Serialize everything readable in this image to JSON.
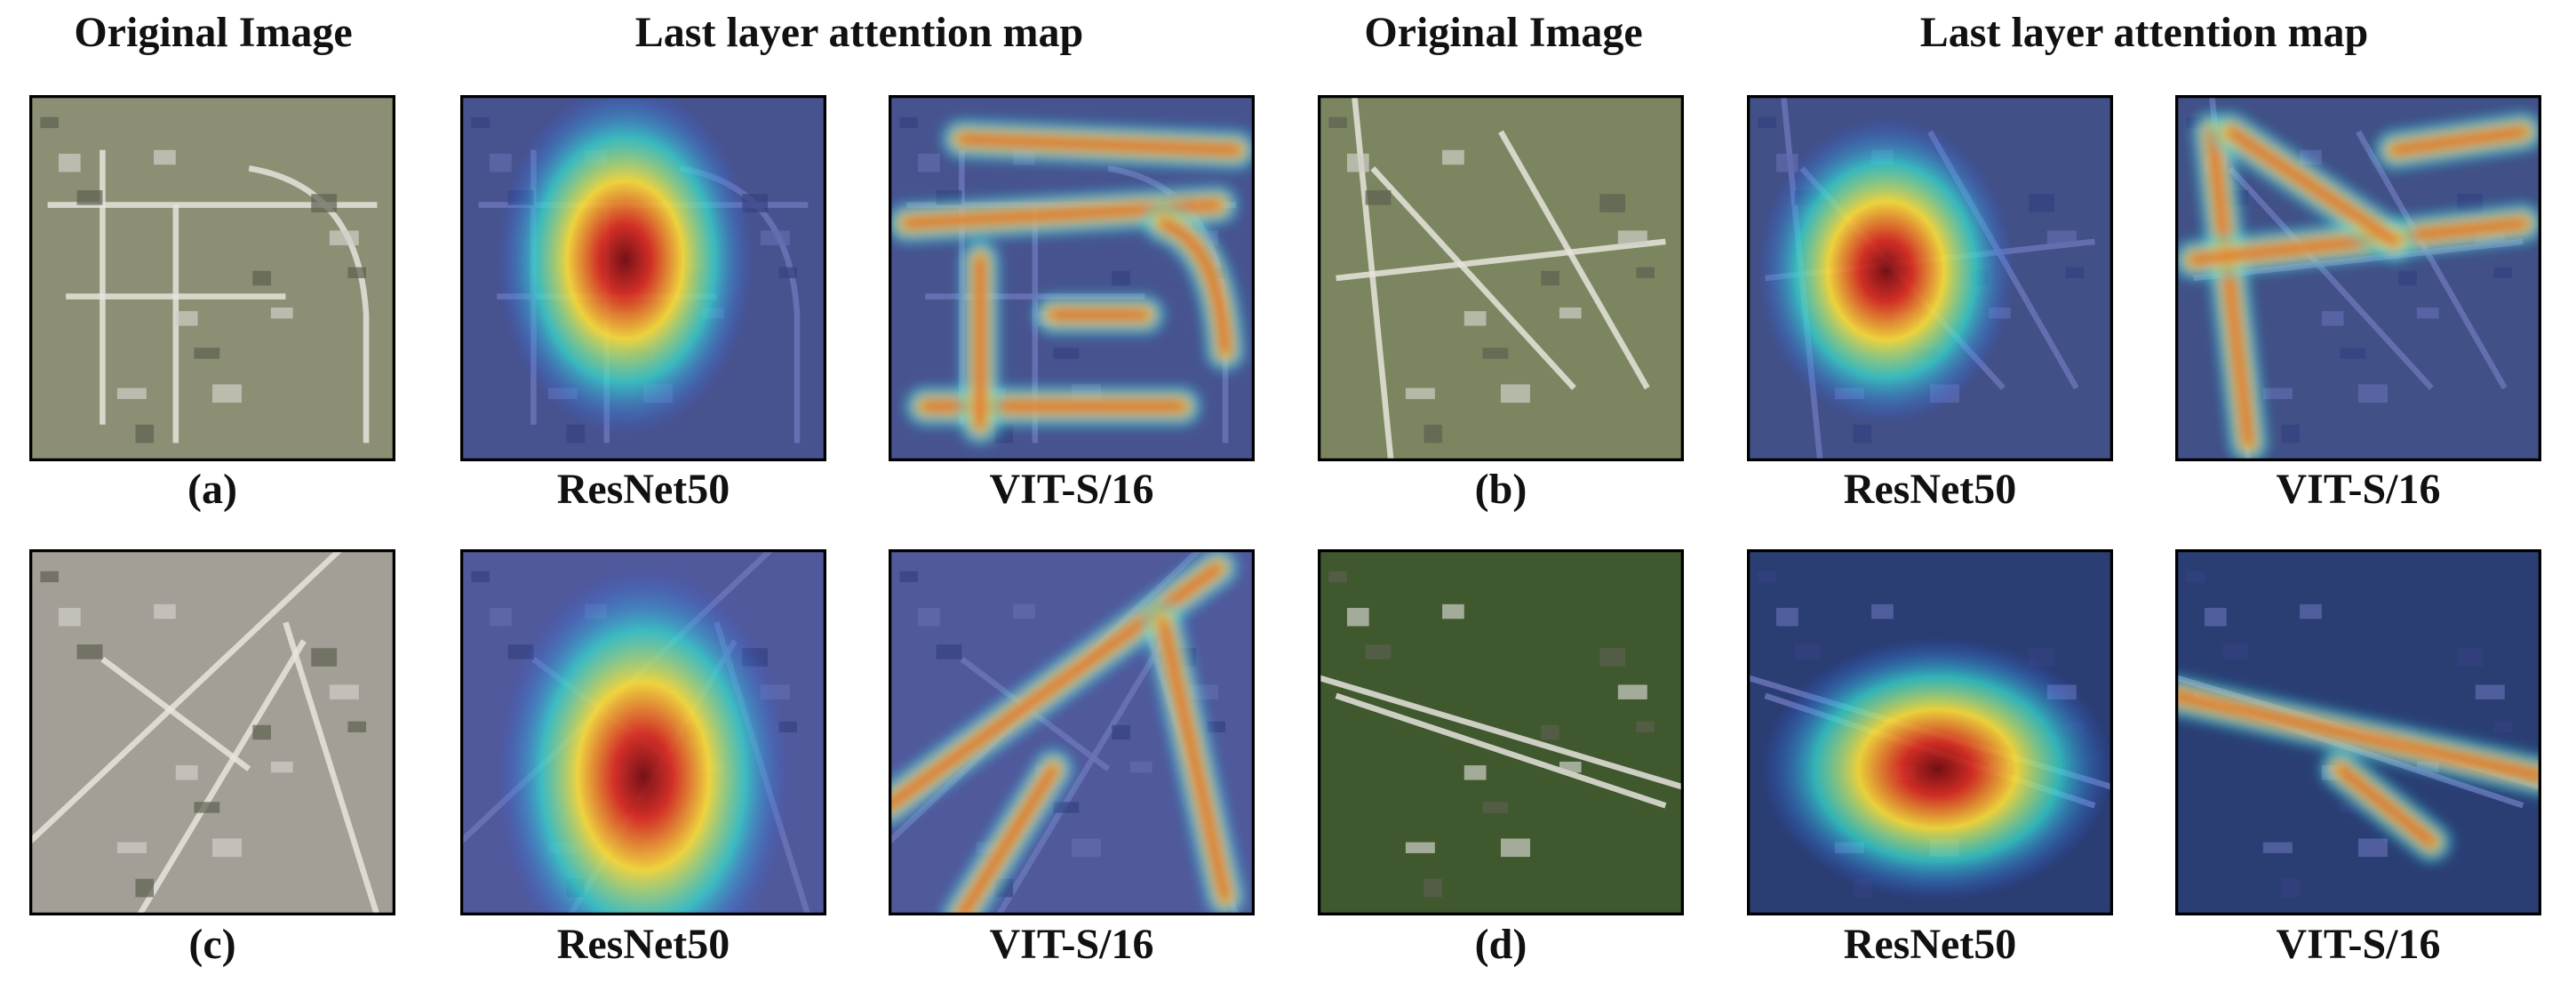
{
  "headers": [
    "Original Image",
    "Last layer attention map",
    "Original Image",
    "Last layer attention map"
  ],
  "rows": [
    {
      "labels": [
        "(a)",
        "ResNet50",
        "VIT-S/16",
        "(b)",
        "ResNet50",
        "VIT-S/16"
      ]
    },
    {
      "labels": [
        "(c)",
        "ResNet50",
        "VIT-S/16",
        "(d)",
        "ResNet50",
        "VIT-S/16"
      ]
    }
  ]
}
